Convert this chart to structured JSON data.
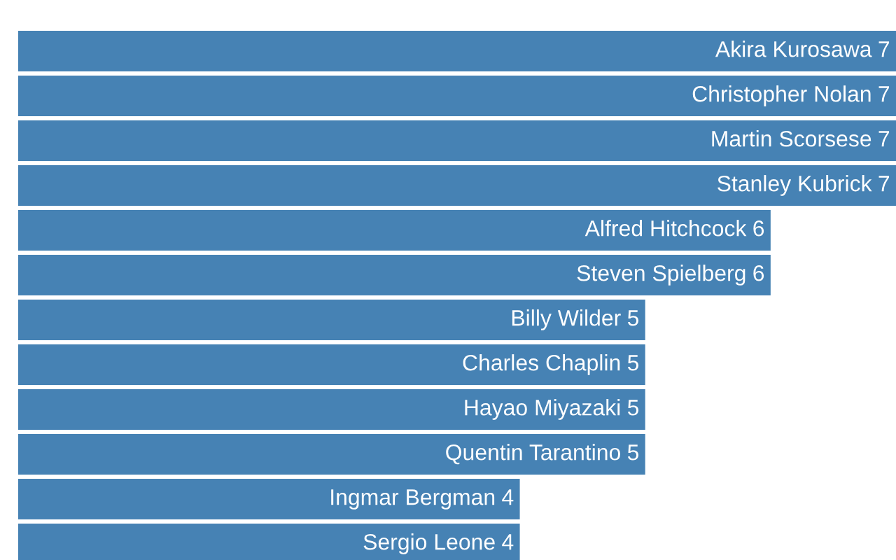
{
  "chart_data": {
    "type": "bar",
    "orientation": "horizontal",
    "categories": [
      "Akira Kurosawa",
      "Christopher Nolan",
      "Martin Scorsese",
      "Stanley Kubrick",
      "Alfred Hitchcock",
      "Steven Spielberg",
      "Billy Wilder",
      "Charles Chaplin",
      "Hayao Miyazaki",
      "Quentin Tarantino",
      "Ingmar Bergman",
      "Sergio Leone"
    ],
    "values": [
      7,
      7,
      7,
      7,
      6,
      6,
      5,
      5,
      5,
      5,
      4,
      4
    ],
    "color": "#4682b4",
    "data_labels": true
  }
}
